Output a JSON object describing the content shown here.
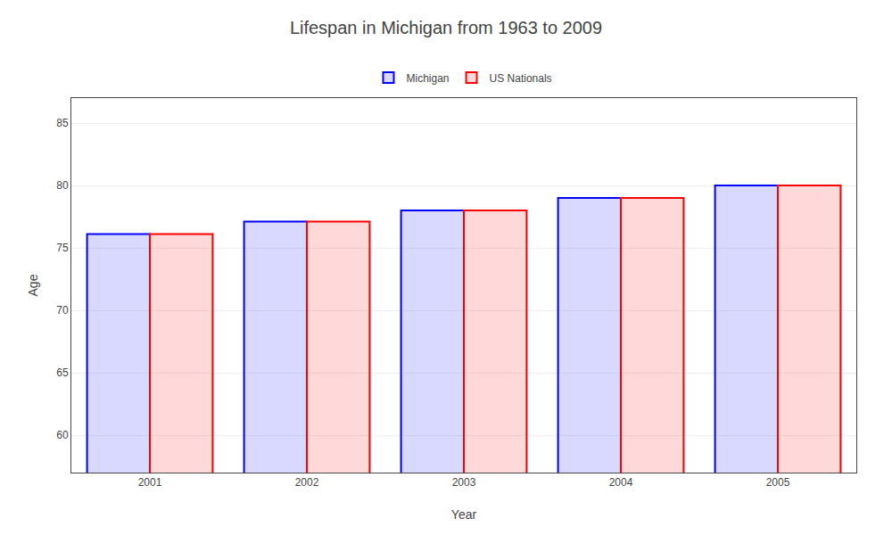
{
  "chart_data": {
    "type": "bar",
    "title": "Lifespan in Michigan from 1963 to 2009",
    "xlabel": "Year",
    "ylabel": "Age",
    "categories": [
      "2001",
      "2002",
      "2003",
      "2004",
      "2005"
    ],
    "series": [
      {
        "name": "Michigan",
        "color": "#0000ff",
        "values": [
          76.1,
          77.1,
          78.0,
          79.0,
          80.0
        ]
      },
      {
        "name": "US Nationals",
        "color": "#ff0000",
        "values": [
          76.1,
          77.1,
          78.0,
          79.0,
          80.0
        ]
      }
    ],
    "ylim": [
      57,
      87
    ],
    "yticks": [
      60,
      65,
      70,
      75,
      80,
      85
    ],
    "grid": true,
    "legend": "top"
  }
}
